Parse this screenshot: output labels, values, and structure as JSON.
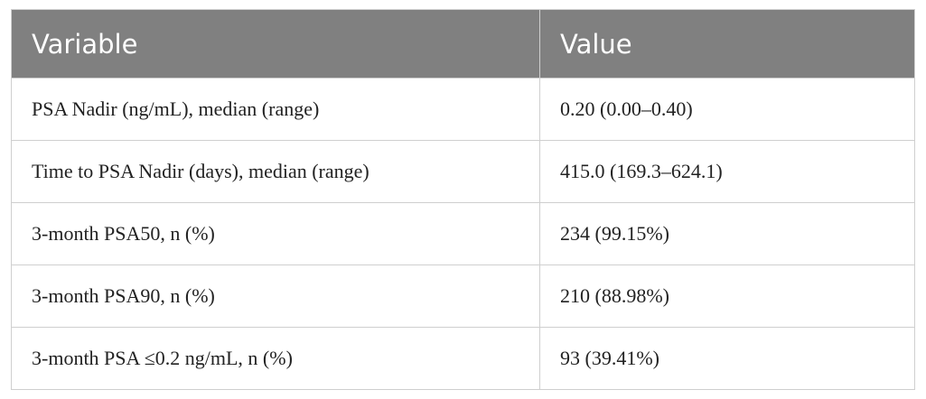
{
  "table": {
    "header": [
      "Variable",
      "Value"
    ],
    "rows": [
      [
        "PSA Nadir (ng/mL), median (range)",
        "0.20 (0.00–0.40)"
      ],
      [
        "Time to PSA Nadir (days), median (range)",
        "415.0 (169.3–624.1)"
      ],
      [
        "3-month PSA50, n (%)",
        "234 (99.15%)"
      ],
      [
        "3-month PSA90, n (%)",
        "210 (88.98%)"
      ],
      [
        "3-month PSA ≤0.2 ng/mL, n (%)",
        "93 (39.41%)"
      ]
    ]
  }
}
